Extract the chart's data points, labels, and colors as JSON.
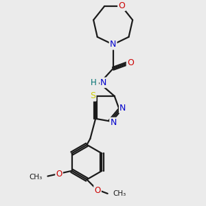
{
  "bg_color": "#ebebeb",
  "bond_color": "#1a1a1a",
  "atom_colors": {
    "N": "#0000cc",
    "O": "#cc0000",
    "S": "#cccc00",
    "C": "#1a1a1a",
    "H": "#007070"
  },
  "figsize": [
    3.0,
    3.0
  ],
  "dpi": 100
}
